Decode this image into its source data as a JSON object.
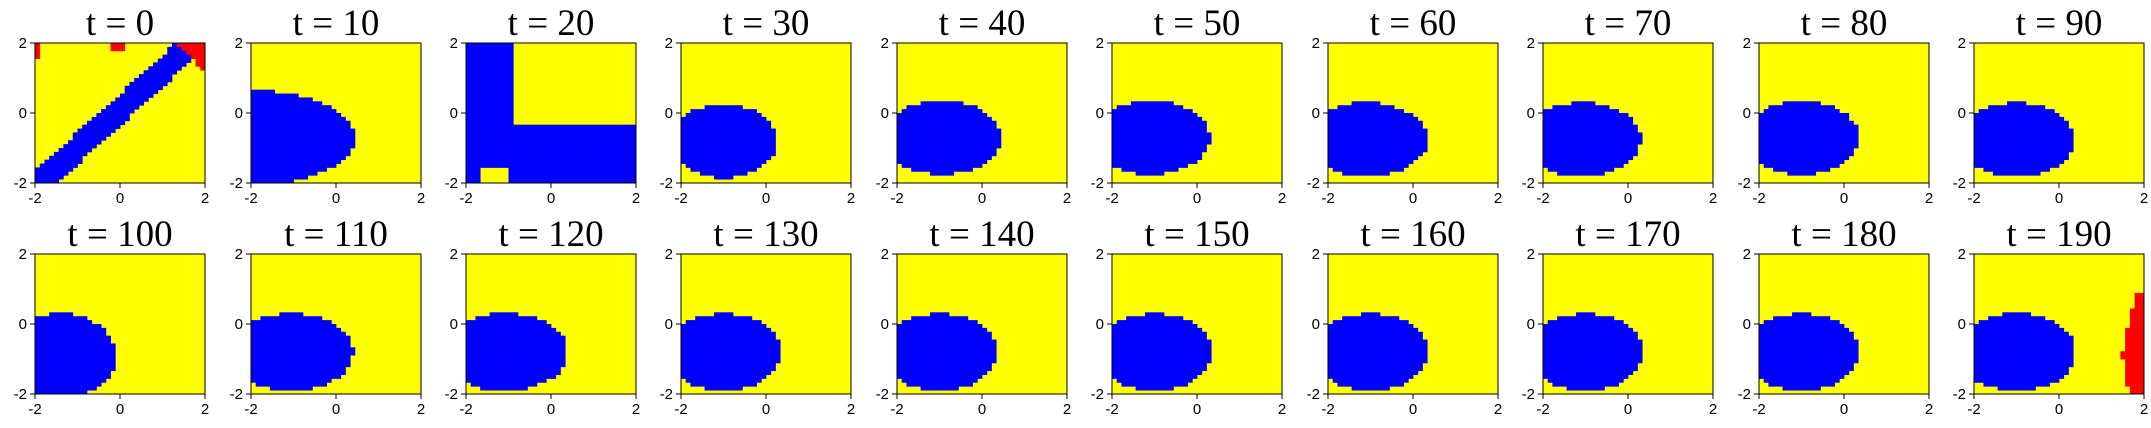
{
  "chart_data": {
    "type": "heatmap",
    "description_layout": "2 rows x 10 columns of small-multiple decision-region maps",
    "colors": {
      "region_a": "#FFFF00",
      "region_b": "#0000FF",
      "region_c": "#FF0000"
    },
    "xlim": [
      -2,
      2
    ],
    "ylim": [
      -2,
      2
    ],
    "xticks": [
      "-2",
      "0",
      "2"
    ],
    "yticks": [
      "-2",
      "0",
      "2"
    ],
    "panels": [
      {
        "title": "t = 0",
        "t": 0
      },
      {
        "title": "t = 10",
        "t": 10
      },
      {
        "title": "t = 20",
        "t": 20
      },
      {
        "title": "t = 30",
        "t": 30
      },
      {
        "title": "t = 40",
        "t": 40
      },
      {
        "title": "t = 50",
        "t": 50
      },
      {
        "title": "t = 60",
        "t": 60
      },
      {
        "title": "t = 70",
        "t": 70
      },
      {
        "title": "t = 80",
        "t": 80
      },
      {
        "title": "t = 90",
        "t": 90
      },
      {
        "title": "t = 100",
        "t": 100
      },
      {
        "title": "t = 110",
        "t": 110
      },
      {
        "title": "t = 120",
        "t": 120
      },
      {
        "title": "t = 130",
        "t": 130
      },
      {
        "title": "t = 140",
        "t": 140
      },
      {
        "title": "t = 150",
        "t": 150
      },
      {
        "title": "t = 160",
        "t": 160
      },
      {
        "title": "t = 170",
        "t": 170
      },
      {
        "title": "t = 180",
        "t": 180
      },
      {
        "title": "t = 190",
        "t": 190
      }
    ]
  }
}
